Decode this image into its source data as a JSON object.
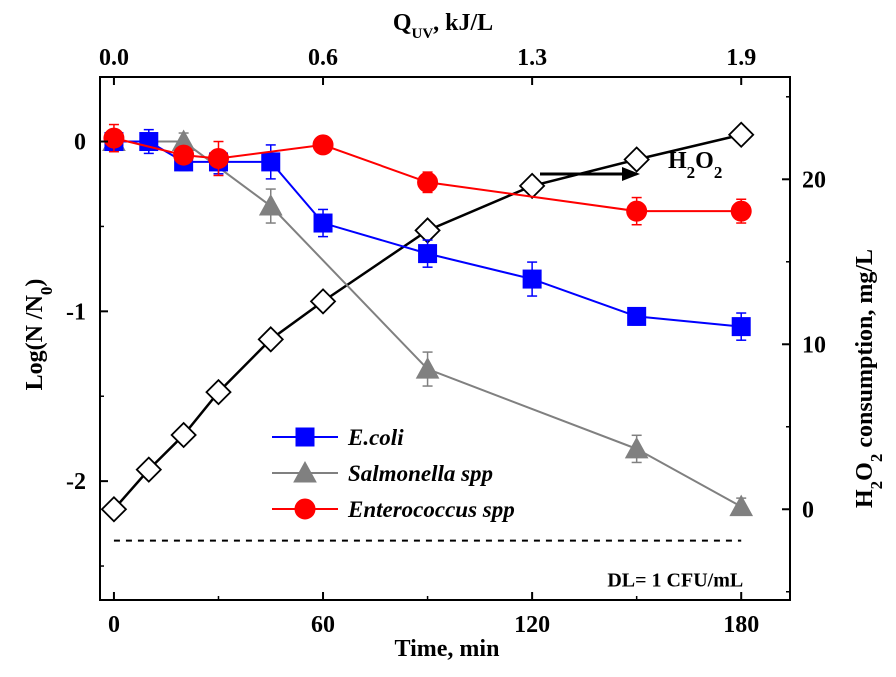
{
  "chart_data": {
    "type": "line",
    "xlabel": "Time, min",
    "ylabel": "Log(N /N0)",
    "y2label": "H2O2 consumption, mg/L",
    "top_axis_label": "QUV, kJ/L",
    "xlim": [
      -4,
      194
    ],
    "ylim": [
      -2.7,
      0.38
    ],
    "y2lim": [
      -5.5,
      26.2
    ],
    "x_ticks": [
      0,
      60,
      120,
      180
    ],
    "y_ticks": [
      0,
      -1,
      -2
    ],
    "y2_ticks": [
      0,
      10,
      20
    ],
    "top_ticks": [
      {
        "x": 0,
        "label": "0.0"
      },
      {
        "x": 60,
        "label": "0.6"
      },
      {
        "x": 120,
        "label": "1.3"
      },
      {
        "x": 180,
        "label": "1.9"
      }
    ],
    "series": [
      {
        "name": "E.coli",
        "axis": "left",
        "color": "#0000ff",
        "marker": "square",
        "x": [
          0,
          10,
          20,
          30,
          45,
          60,
          90,
          120,
          150,
          180
        ],
        "y": [
          0.0,
          0.0,
          -0.12,
          -0.12,
          -0.12,
          -0.48,
          -0.66,
          -0.81,
          -1.03,
          -1.09
        ],
        "err": [
          0.05,
          0.07,
          0.05,
          0.07,
          0.1,
          0.08,
          0.08,
          0.1,
          0.05,
          0.08
        ]
      },
      {
        "name": "Salmonella spp",
        "axis": "left",
        "color": "#808080",
        "marker": "triangle",
        "x": [
          0,
          20,
          45,
          90,
          150,
          180
        ],
        "y": [
          0.0,
          0.0,
          -0.38,
          -1.34,
          -1.81,
          -2.15
        ],
        "err": [
          0.05,
          0.05,
          0.1,
          0.1,
          0.08,
          0.05
        ]
      },
      {
        "name": "Enterococcus spp",
        "axis": "left",
        "color": "#ff0000",
        "marker": "circle",
        "x": [
          0,
          20,
          30,
          60,
          90,
          150,
          180
        ],
        "y": [
          0.02,
          -0.08,
          -0.1,
          -0.02,
          -0.24,
          -0.41,
          -0.41
        ],
        "err": [
          0.08,
          0.05,
          0.1,
          0.04,
          0.06,
          0.08,
          0.07
        ]
      },
      {
        "name": "H2O2",
        "axis": "right",
        "color": "#000000",
        "marker": "diamond-open",
        "x": [
          0,
          10,
          20,
          30,
          45,
          60,
          90,
          120,
          150,
          180
        ],
        "y": [
          0.0,
          2.4,
          4.5,
          7.1,
          10.3,
          12.6,
          16.9,
          19.6,
          21.2,
          22.7
        ]
      }
    ],
    "detection_limit": {
      "y": -2.35,
      "label": "DL= 1 CFU/mL"
    },
    "annotations": [
      {
        "text": "H2O2",
        "points_to": "H2O2"
      }
    ],
    "legend_position": "lower-left"
  }
}
